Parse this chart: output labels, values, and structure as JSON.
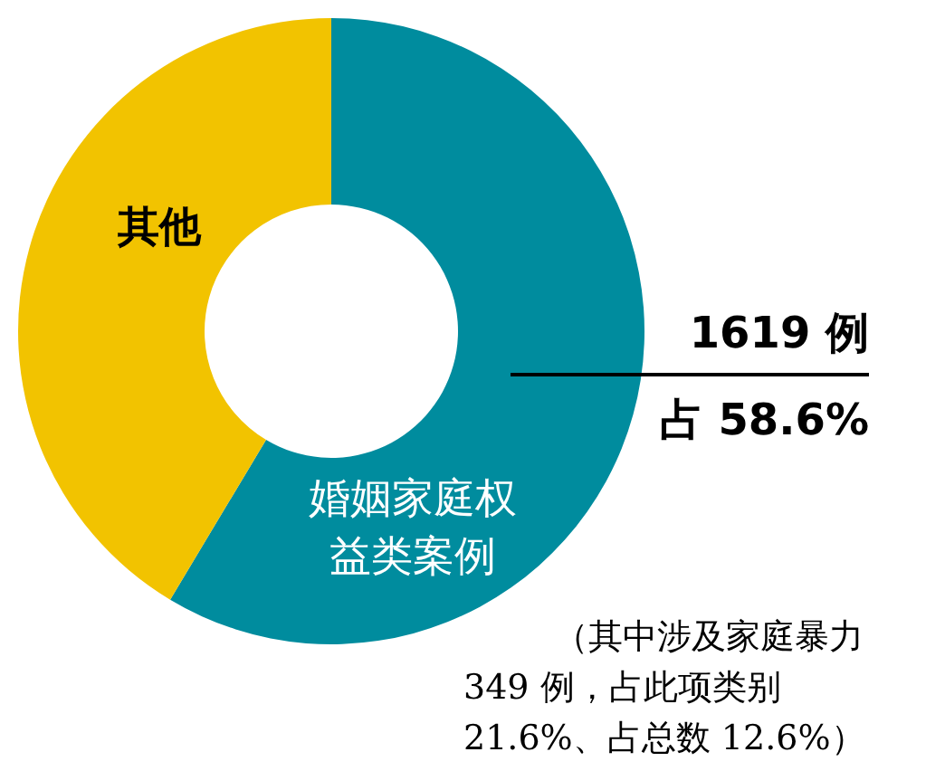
{
  "chart_data": {
    "type": "donut",
    "categories": [
      "婚姻家庭权益类案例",
      "其他"
    ],
    "values": [
      58.6,
      41.4
    ],
    "colors": [
      "#008c9e",
      "#f2c300"
    ],
    "annotations": [
      "1619 例",
      "占 58.6%",
      "（其中涉及家庭暴力 349 例，占此项类别 21.6%、占总数 12.6%）"
    ]
  }
}
